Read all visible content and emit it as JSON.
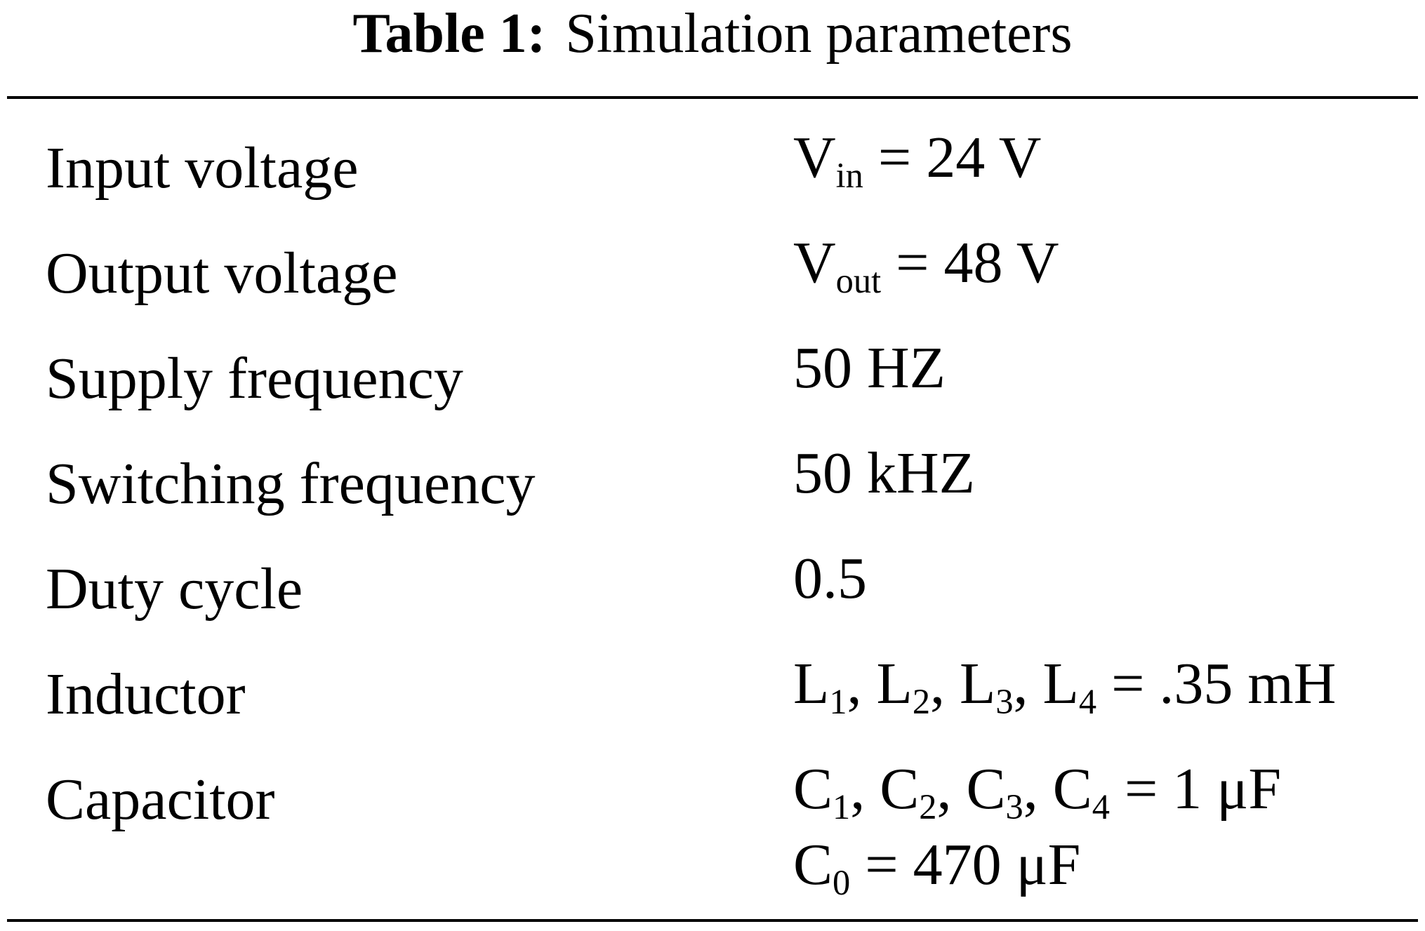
{
  "table": {
    "caption_label": "Table 1:",
    "caption_text": "Simulation parameters",
    "rows": [
      {
        "label": "Input voltage",
        "value": {
          "sym": "V",
          "sub": "in",
          "rest": " = 24 V"
        }
      },
      {
        "label": "Output voltage",
        "value": {
          "sym": "V",
          "sub": "out",
          "rest": " = 48 V"
        }
      },
      {
        "label": "Supply frequency",
        "value": {
          "text": "50 HZ"
        }
      },
      {
        "label": "Switching frequency",
        "value": {
          "text": "50 kHZ"
        }
      },
      {
        "label": "Duty cycle",
        "value": {
          "text": "0.5"
        }
      },
      {
        "label": "Inductor",
        "value": {
          "text": "L1, L2, L3, L4 = .35 mH"
        }
      },
      {
        "label": "Capacitor",
        "value": {
          "text": "C1, C2, C3, C4 = 1 μF",
          "text2": "C0 = 470 μF"
        }
      }
    ]
  }
}
